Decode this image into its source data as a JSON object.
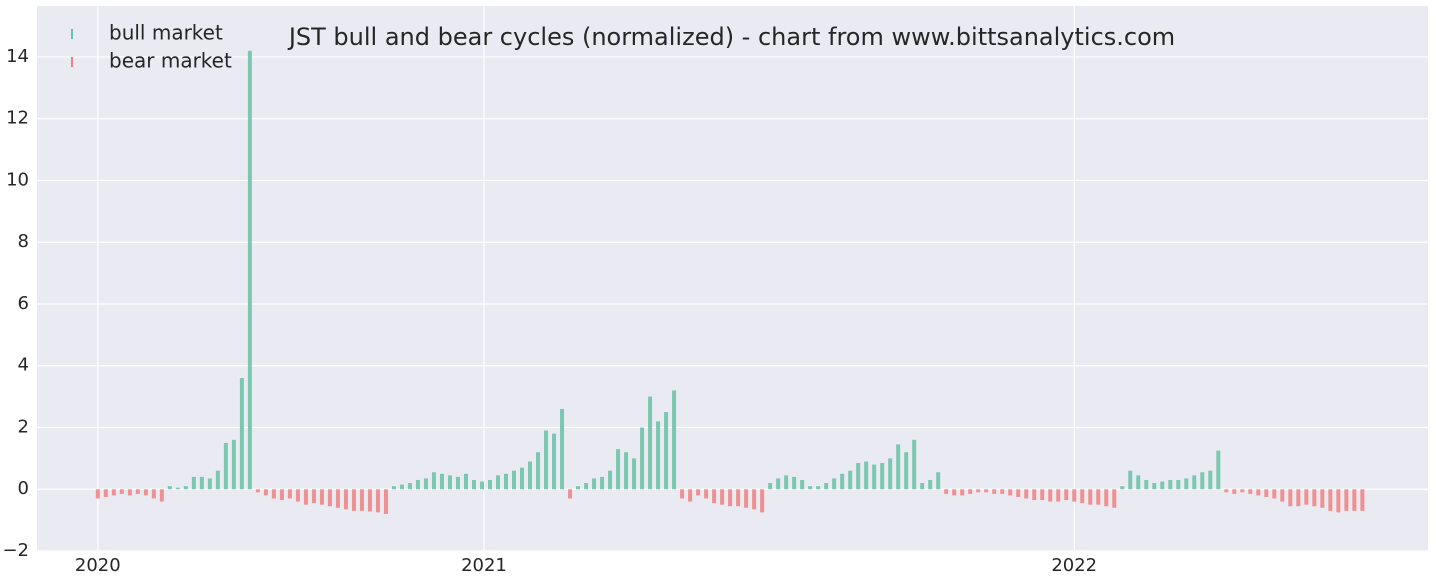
{
  "chart_data": {
    "type": "bar",
    "title": "JST bull and bear cycles (normalized)  - chart from www.bittsanalytics.com",
    "x": [
      0,
      1,
      2,
      3,
      4,
      5,
      6,
      7,
      8,
      9,
      10,
      11,
      12,
      13,
      14,
      15,
      16,
      17,
      18,
      19,
      20,
      21,
      22,
      23,
      24,
      25,
      26,
      27,
      28,
      29,
      30,
      31,
      32,
      33,
      34,
      35,
      36,
      37,
      38,
      39,
      40,
      41,
      42,
      43,
      44,
      45,
      46,
      47,
      48,
      49,
      50,
      51,
      52,
      53,
      54,
      55,
      56,
      57,
      58,
      59,
      60,
      61,
      62,
      63,
      64,
      65,
      66,
      67,
      68,
      69,
      70,
      71,
      72,
      73,
      74,
      75,
      76,
      77,
      78,
      79,
      80,
      81,
      82,
      83,
      84,
      85,
      86,
      87,
      88,
      89,
      90,
      91,
      92,
      93,
      94,
      95,
      96,
      97,
      98,
      99,
      100,
      101,
      102,
      103,
      104,
      105,
      106,
      107,
      108,
      109,
      110,
      111,
      112,
      113,
      114,
      115,
      116,
      117,
      118,
      119,
      120,
      121,
      122,
      123,
      124,
      125,
      126,
      127,
      128,
      129,
      130,
      131,
      132,
      133,
      134,
      135,
      136,
      137,
      138,
      139,
      140,
      141,
      142,
      143,
      144,
      145,
      146,
      147,
      148,
      149,
      150,
      151,
      152,
      153,
      154,
      155,
      156,
      157,
      158
    ],
    "series": [
      {
        "name": "bull market",
        "color": "#66c2a5",
        "values": [
          null,
          null,
          null,
          null,
          null,
          null,
          null,
          null,
          null,
          0.1,
          0.05,
          0.1,
          0.4,
          0.4,
          0.35,
          0.6,
          1.5,
          1.6,
          3.6,
          14.2,
          null,
          null,
          null,
          null,
          null,
          null,
          null,
          null,
          null,
          null,
          null,
          null,
          null,
          null,
          null,
          null,
          null,
          0.1,
          0.15,
          0.2,
          0.3,
          0.35,
          0.55,
          0.5,
          0.45,
          0.4,
          0.5,
          0.3,
          0.25,
          0.3,
          0.45,
          0.5,
          0.6,
          0.7,
          0.9,
          1.2,
          1.9,
          1.8,
          2.6,
          null,
          0.1,
          0.2,
          0.35,
          0.4,
          0.6,
          1.3,
          1.2,
          1.0,
          2.0,
          3.0,
          2.2,
          2.5,
          3.2,
          null,
          null,
          null,
          null,
          null,
          null,
          null,
          null,
          null,
          null,
          null,
          0.2,
          0.35,
          0.45,
          0.4,
          0.3,
          0.1,
          0.1,
          0.2,
          0.35,
          0.5,
          0.6,
          0.85,
          0.9,
          0.8,
          0.85,
          1.0,
          1.45,
          1.2,
          1.6,
          0.2,
          0.3,
          0.55,
          null,
          null,
          null,
          null,
          null,
          null,
          null,
          null,
          null,
          null,
          null,
          null,
          null,
          null,
          null,
          null,
          null,
          null,
          null,
          null,
          null,
          null,
          0.1,
          0.6,
          0.45,
          0.3,
          0.2,
          0.25,
          0.3,
          0.3,
          0.35,
          0.45,
          0.55,
          0.6,
          1.25,
          null,
          null,
          null,
          null,
          null,
          null,
          null,
          null,
          null,
          null,
          null,
          null,
          null,
          null,
          null,
          null,
          null,
          null
        ]
      },
      {
        "name": "bear market",
        "color": "#f08080",
        "values": [
          -0.3,
          -0.25,
          -0.2,
          -0.15,
          -0.2,
          -0.15,
          -0.2,
          -0.3,
          -0.4,
          null,
          null,
          null,
          null,
          null,
          null,
          null,
          null,
          null,
          null,
          null,
          -0.1,
          -0.2,
          -0.3,
          -0.35,
          -0.3,
          -0.4,
          -0.5,
          -0.45,
          -0.5,
          -0.55,
          -0.6,
          -0.65,
          -0.7,
          -0.7,
          -0.72,
          -0.75,
          -0.8,
          null,
          null,
          null,
          null,
          null,
          null,
          null,
          null,
          null,
          null,
          null,
          null,
          null,
          null,
          null,
          null,
          null,
          null,
          null,
          null,
          null,
          null,
          -0.3,
          null,
          null,
          null,
          null,
          null,
          null,
          null,
          null,
          null,
          null,
          null,
          null,
          null,
          -0.3,
          -0.4,
          -0.2,
          -0.3,
          -0.45,
          -0.5,
          -0.55,
          -0.55,
          -0.6,
          -0.65,
          -0.75,
          null,
          null,
          null,
          null,
          null,
          null,
          null,
          null,
          null,
          null,
          null,
          null,
          null,
          null,
          null,
          null,
          null,
          null,
          null,
          null,
          null,
          null,
          -0.15,
          -0.2,
          -0.2,
          -0.15,
          -0.1,
          -0.1,
          -0.15,
          -0.15,
          -0.2,
          -0.25,
          -0.3,
          -0.35,
          -0.35,
          -0.4,
          -0.4,
          -0.35,
          -0.4,
          -0.45,
          -0.5,
          -0.5,
          -0.55,
          -0.6,
          null,
          null,
          null,
          null,
          null,
          null,
          null,
          null,
          null,
          null,
          null,
          null,
          null,
          -0.1,
          -0.15,
          -0.1,
          -0.15,
          -0.2,
          -0.25,
          -0.3,
          -0.4,
          -0.55,
          -0.55,
          -0.5,
          -0.55,
          -0.6,
          -0.7,
          -0.75,
          -0.7,
          -0.7,
          -0.7
        ]
      }
    ],
    "xlim": [
      -7.6,
      166.2
    ],
    "xticks": [
      {
        "value": 0,
        "label": "2020"
      },
      {
        "value": 48.25,
        "label": "2021"
      },
      {
        "value": 122,
        "label": "2022"
      }
    ],
    "ylim": [
      -2,
      15.65
    ],
    "yticks": [
      {
        "value": -2,
        "label": "−2"
      },
      0,
      2,
      4,
      6,
      8,
      10,
      12,
      14
    ],
    "grid": true,
    "legend": "upper left"
  }
}
